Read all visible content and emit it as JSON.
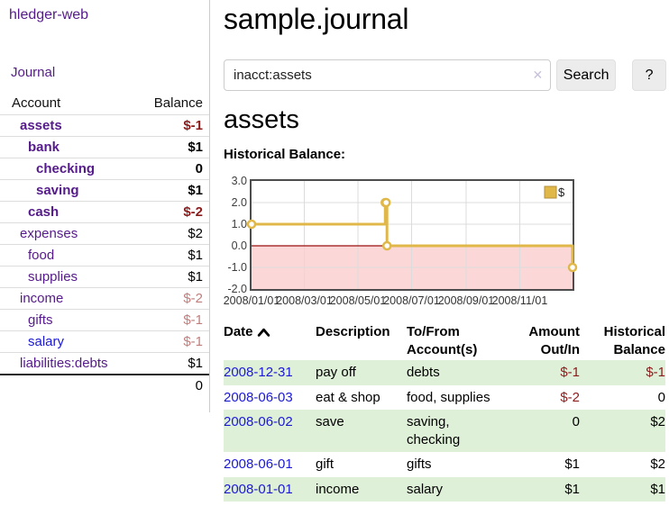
{
  "app": {
    "brand": "hledger-web"
  },
  "sidebar": {
    "journal_link": "Journal",
    "accounts": {
      "header_account": "Account",
      "header_balance": "Balance",
      "rows": [
        {
          "name": "assets",
          "depth": 1,
          "bold": true,
          "balance": "$-1",
          "balance_class": "neg"
        },
        {
          "name": "bank",
          "depth": 2,
          "bold": true,
          "balance": "$1",
          "balance_class": "num"
        },
        {
          "name": "checking",
          "depth": 3,
          "bold": true,
          "balance": "0",
          "balance_class": "num"
        },
        {
          "name": "saving",
          "depth": 3,
          "bold": true,
          "balance": "$1",
          "balance_class": "num"
        },
        {
          "name": "cash",
          "depth": 2,
          "bold": true,
          "balance": "$-2",
          "balance_class": "neg"
        },
        {
          "name": "expenses",
          "depth": 1,
          "bold": false,
          "balance": "$2",
          "balance_class": "num"
        },
        {
          "name": "food",
          "depth": 2,
          "bold": false,
          "balance": "$1",
          "balance_class": "num"
        },
        {
          "name": "supplies",
          "depth": 2,
          "bold": false,
          "balance": "$1",
          "balance_class": "num"
        },
        {
          "name": "income",
          "depth": 1,
          "bold": false,
          "balance": "$-2",
          "balance_class": "negdim"
        },
        {
          "name": "gifts",
          "depth": 2,
          "bold": false,
          "balance": "$-1",
          "balance_class": "negdim"
        },
        {
          "name": "salary",
          "depth": 2,
          "bold": false,
          "balance": "$-1",
          "balance_class": "negdim",
          "link_color": "blue"
        },
        {
          "name": "liabilities:debts",
          "depth": 1,
          "bold": false,
          "balance": "$1",
          "balance_class": "num"
        }
      ],
      "total": "0"
    }
  },
  "main": {
    "title": "sample.journal",
    "account_title": "assets",
    "chart_label": "Historical Balance:"
  },
  "search": {
    "value": "inacct:assets",
    "clear": "✕",
    "submit_label": "Search",
    "help_label": "?"
  },
  "chart_data": {
    "type": "line",
    "step": true,
    "title": "Historical Balance:",
    "series": [
      {
        "name": "$",
        "points": [
          [
            "2008/01/01",
            1.0
          ],
          [
            "2008/06/01",
            2.0
          ],
          [
            "2008/06/02",
            2.0
          ],
          [
            "2008/06/03",
            0.0
          ],
          [
            "2008/12/31",
            -1.0
          ]
        ]
      }
    ],
    "x_range": [
      "2008/01/01",
      "2008/12/31"
    ],
    "x_tick_labels": [
      "2008/01/01",
      "2008/03/01",
      "2008/05/01",
      "2008/07/01",
      "2008/09/01",
      "2008/11/01"
    ],
    "y_tick_labels": [
      "3.0",
      "2.0",
      "1.0",
      "0.0",
      "-1.0",
      "-2.0"
    ],
    "ylim": [
      -2.0,
      3.0
    ],
    "legend": [
      {
        "label": "$"
      }
    ],
    "legend_position": "top-right",
    "grid": true,
    "negative_region": true
  },
  "register": {
    "headers": {
      "date": "Date",
      "description": "Description",
      "accounts": "To/From Account(s)",
      "amount": "Amount Out/In",
      "balance": "Historical Balance"
    },
    "sort": {
      "column": "date",
      "direction": "ascending"
    },
    "rows": [
      {
        "date": "2008-12-31",
        "description": "pay off",
        "accounts": "debts",
        "amount": "$-1",
        "amount_class": "neg",
        "balance": "$-1",
        "balance_class": "neg"
      },
      {
        "date": "2008-06-03",
        "description": "eat & shop",
        "accounts": "food, supplies",
        "amount": "$-2",
        "amount_class": "neg",
        "balance": "0",
        "balance_class": "num"
      },
      {
        "date": "2008-06-02",
        "description": "save",
        "accounts": "saving, checking",
        "amount": "0",
        "amount_class": "num",
        "balance": "$2",
        "balance_class": "num"
      },
      {
        "date": "2008-06-01",
        "description": "gift",
        "accounts": "gifts",
        "amount": "$1",
        "amount_class": "num",
        "balance": "$2",
        "balance_class": "num"
      },
      {
        "date": "2008-01-01",
        "description": "income",
        "accounts": "salary",
        "amount": "$1",
        "amount_class": "num",
        "balance": "$1",
        "balance_class": "num"
      }
    ]
  },
  "colors": {
    "link_purple": "#551a8b",
    "link_blue": "#1c19d3",
    "negative": "#8b1c1c",
    "negative_dim": "#bf7e7c",
    "row_stripe_green": "#dff0d8",
    "chart_gold": "#e0b84a",
    "chart_gold_border": "#b3913c",
    "chart_negative_fill": "#fbd7d7",
    "chart_zero_line": "#9b1010",
    "chart_grid": "#dcdcdc",
    "chart_border": "#4d4d4d"
  }
}
